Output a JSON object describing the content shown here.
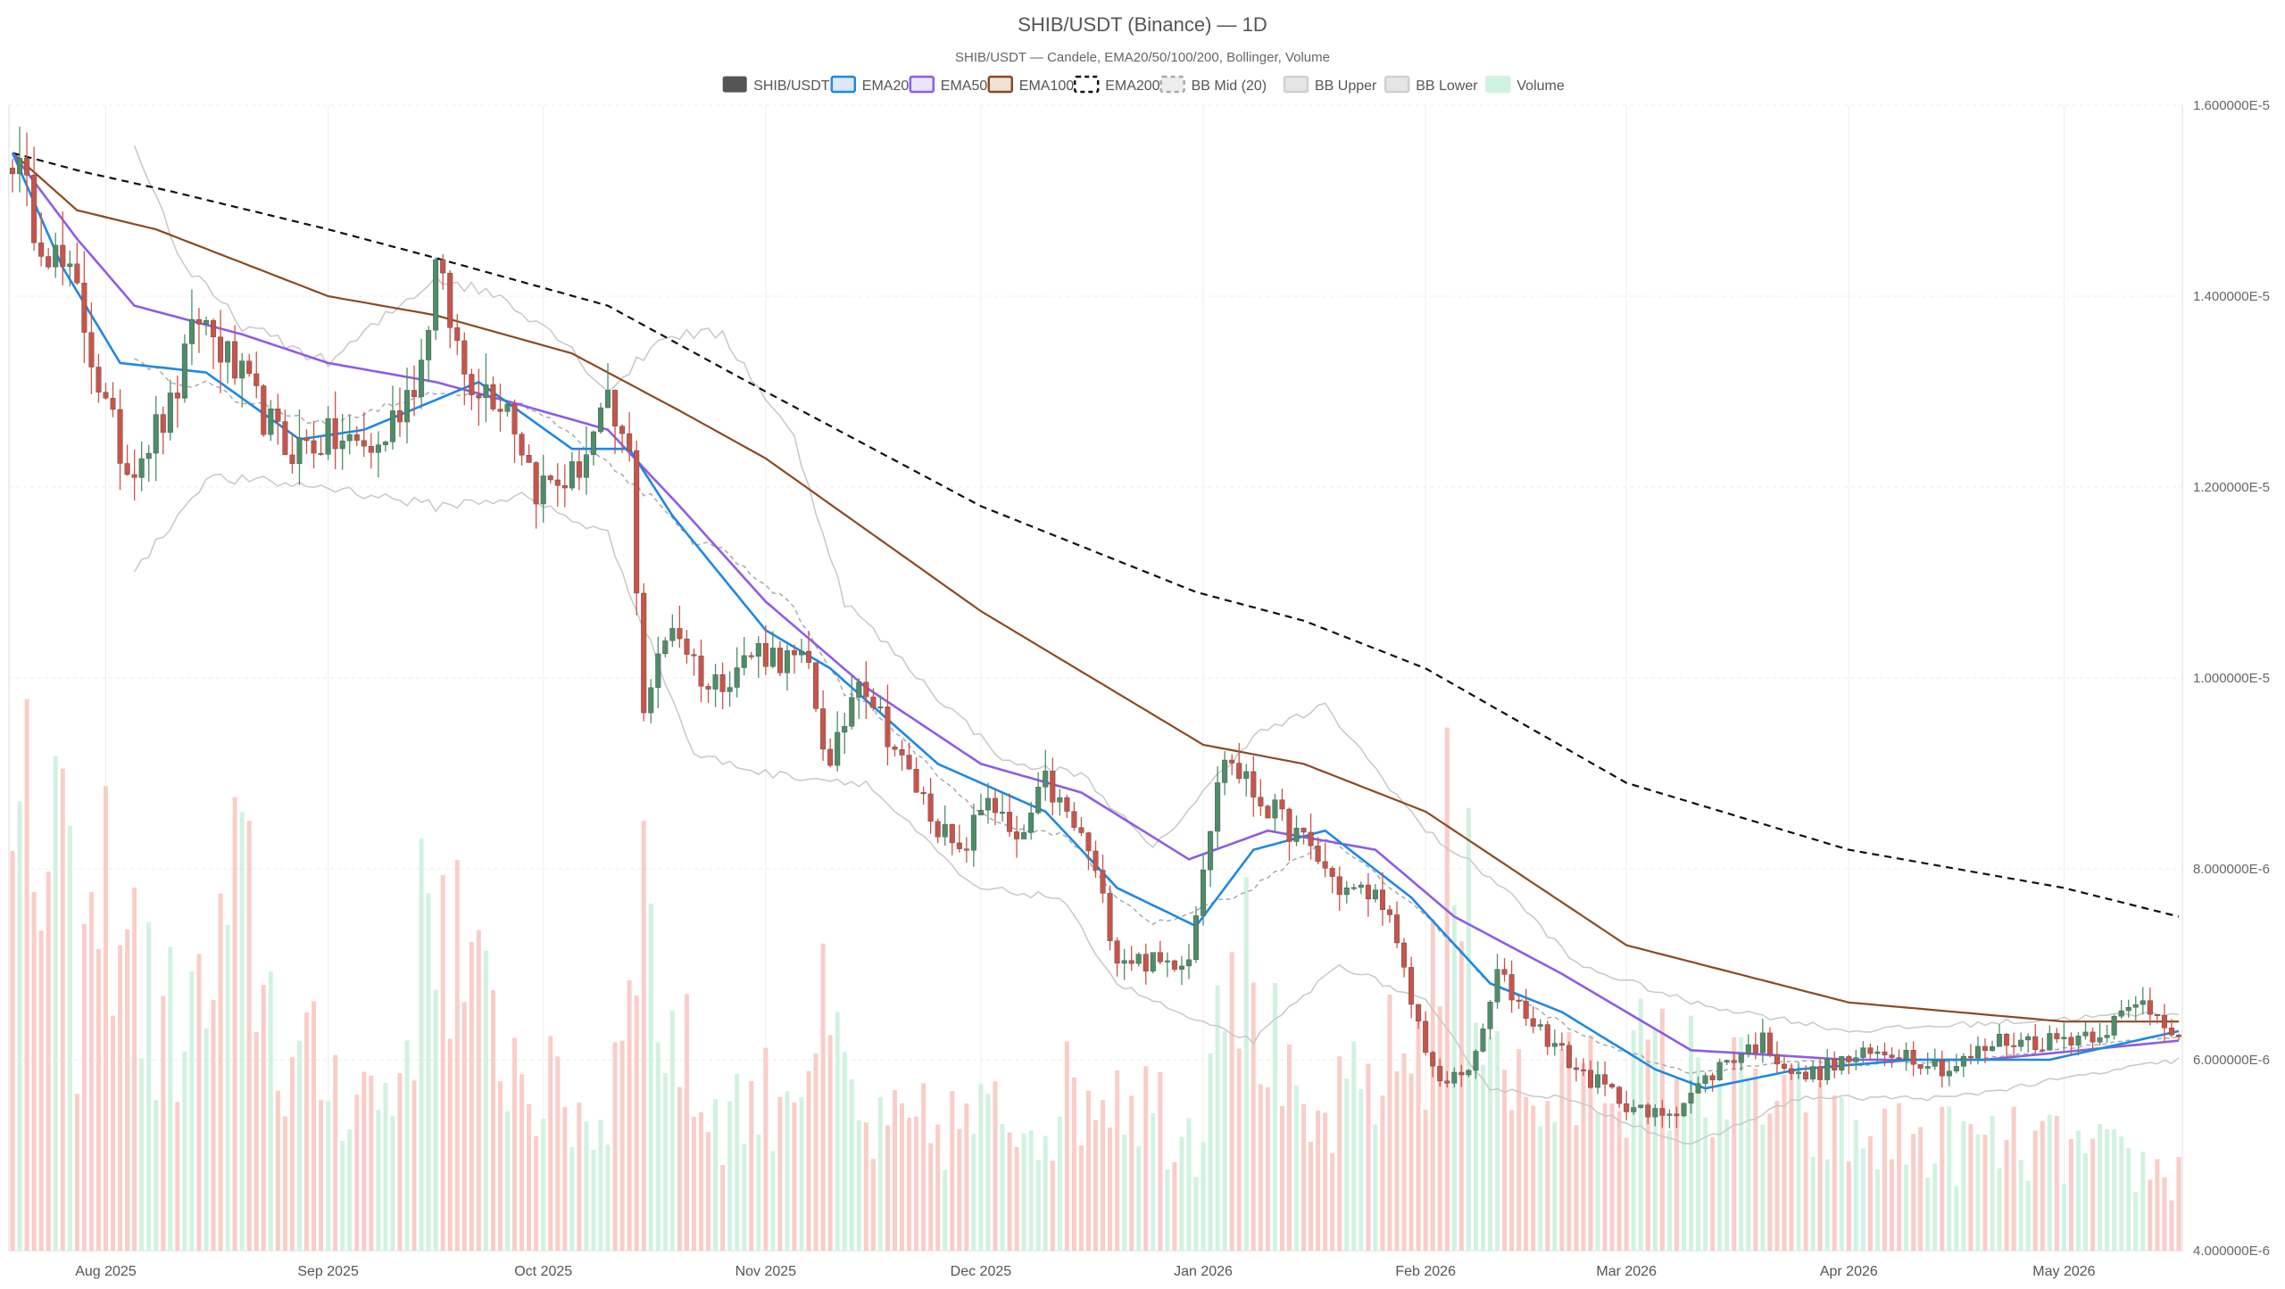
{
  "chart_data": {
    "type": "candlestick",
    "title": "SHIB/USDT (Binance) — 1D",
    "subtitle": "SHIB/USDT — Candele, EMA20/50/100/200, Bollinger, Volume",
    "ylim": [
      4e-06,
      1.6e-05
    ],
    "y_scale": "linear",
    "grid": true,
    "legend_position": "top-center",
    "y_ticks": [
      "1.600000E-5",
      "1.400000E-5",
      "1.200000E-5",
      "1.000000E-5",
      "8.000000E-6",
      "6.000000E-6",
      "4.000000E-6"
    ],
    "y_tick_values": [
      1.6e-05,
      1.4e-05,
      1.2e-05,
      1e-05,
      8e-06,
      6e-06,
      4e-06
    ],
    "x_start_date": "2025-07-19",
    "x_end_date": "2026-05-17",
    "x_ticks": [
      {
        "label": "Aug 2025",
        "date": "2025-08-01"
      },
      {
        "label": "Sep 2025",
        "date": "2025-09-01"
      },
      {
        "label": "Oct 2025",
        "date": "2025-10-01"
      },
      {
        "label": "Nov 2025",
        "date": "2025-11-01"
      },
      {
        "label": "Dec 2025",
        "date": "2025-12-01"
      },
      {
        "label": "Jan 2026",
        "date": "2026-01-01"
      },
      {
        "label": "Feb 2026",
        "date": "2026-02-01"
      },
      {
        "label": "Mar 2026",
        "date": "2026-03-01"
      },
      {
        "label": "Apr 2026",
        "date": "2026-04-01"
      },
      {
        "label": "May 2026",
        "date": "2026-05-01"
      }
    ],
    "legend": [
      {
        "label": "SHIB/USDT",
        "swatch": "solid",
        "fill": "#555555",
        "stroke": "#555555"
      },
      {
        "label": "EMA20",
        "swatch": "box",
        "fill": "#dbe9f7",
        "stroke": "#1e88e5"
      },
      {
        "label": "EMA50",
        "swatch": "box",
        "fill": "#ece4f9",
        "stroke": "#8e5ce8"
      },
      {
        "label": "EMA100",
        "swatch": "box",
        "fill": "#efe1d6",
        "stroke": "#8b4a23"
      },
      {
        "label": "EMA200",
        "swatch": "dashed",
        "fill": "#ffffff",
        "stroke": "#111111"
      },
      {
        "label": "BB Mid (20)",
        "swatch": "dashed",
        "fill": "#eeeeee",
        "stroke": "#aaaaaa"
      },
      {
        "label": "BB Upper",
        "swatch": "box",
        "fill": "#e6e6e6",
        "stroke": "#d0d0d0"
      },
      {
        "label": "BB Lower",
        "swatch": "box",
        "fill": "#e6e6e6",
        "stroke": "#d0d0d0"
      },
      {
        "label": "Volume",
        "swatch": "box",
        "fill": "#d2f2e1",
        "stroke": "#d2f2e1"
      }
    ],
    "colors": {
      "up": "#4e8d69",
      "down": "#c8544a",
      "vol_up": "#d2f2e1",
      "vol_down": "#f9cdc8",
      "ema20": "#1e88e5",
      "ema50": "#8e5ce8",
      "ema100": "#8b4a23",
      "ema200": "#111111",
      "bb_mid": "#aaaaaa",
      "bb_band": "#c8c8c8",
      "grid": "#eeeeee"
    },
    "close_anchors": [
      {
        "date": "2025-07-19",
        "close": 1.55e-05
      },
      {
        "date": "2025-07-22",
        "close": 1.48e-05
      },
      {
        "date": "2025-07-28",
        "close": 1.4e-05
      },
      {
        "date": "2025-08-01",
        "close": 1.28e-05
      },
      {
        "date": "2025-08-04",
        "close": 1.22e-05
      },
      {
        "date": "2025-08-10",
        "close": 1.28e-05
      },
      {
        "date": "2025-08-14",
        "close": 1.38e-05
      },
      {
        "date": "2025-08-20",
        "close": 1.31e-05
      },
      {
        "date": "2025-08-26",
        "close": 1.24e-05
      },
      {
        "date": "2025-09-01",
        "close": 1.25e-05
      },
      {
        "date": "2025-09-08",
        "close": 1.24e-05
      },
      {
        "date": "2025-09-14",
        "close": 1.33e-05
      },
      {
        "date": "2025-09-16",
        "close": 1.43e-05
      },
      {
        "date": "2025-09-20",
        "close": 1.32e-05
      },
      {
        "date": "2025-09-26",
        "close": 1.29e-05
      },
      {
        "date": "2025-09-30",
        "close": 1.2e-05
      },
      {
        "date": "2025-10-05",
        "close": 1.21e-05
      },
      {
        "date": "2025-10-10",
        "close": 1.28e-05
      },
      {
        "date": "2025-10-13",
        "close": 1.23e-05
      },
      {
        "date": "2025-10-15",
        "close": 9.7e-06
      },
      {
        "date": "2025-10-19",
        "close": 1.06e-05
      },
      {
        "date": "2025-10-24",
        "close": 9.9e-06
      },
      {
        "date": "2025-10-31",
        "close": 1.03e-05
      },
      {
        "date": "2025-11-07",
        "close": 1.01e-05
      },
      {
        "date": "2025-11-10",
        "close": 9e-06
      },
      {
        "date": "2025-11-14",
        "close": 1.01e-05
      },
      {
        "date": "2025-11-20",
        "close": 9.1e-06
      },
      {
        "date": "2025-11-28",
        "close": 8.1e-06
      },
      {
        "date": "2025-12-02",
        "close": 8.8e-06
      },
      {
        "date": "2025-12-06",
        "close": 8.2e-06
      },
      {
        "date": "2025-12-10",
        "close": 8.9e-06
      },
      {
        "date": "2025-12-16",
        "close": 8.2e-06
      },
      {
        "date": "2025-12-20",
        "close": 7.1e-06
      },
      {
        "date": "2025-12-26",
        "close": 7e-06
      },
      {
        "date": "2025-12-30",
        "close": 7.1e-06
      },
      {
        "date": "2026-01-01",
        "close": 8.1e-06
      },
      {
        "date": "2026-01-04",
        "close": 9.2e-06
      },
      {
        "date": "2026-01-08",
        "close": 8.8e-06
      },
      {
        "date": "2026-01-12",
        "close": 8.5e-06
      },
      {
        "date": "2026-01-16",
        "close": 8.2e-06
      },
      {
        "date": "2026-01-20",
        "close": 7.8e-06
      },
      {
        "date": "2026-01-26",
        "close": 7.7e-06
      },
      {
        "date": "2026-01-30",
        "close": 6.6e-06
      },
      {
        "date": "2026-02-03",
        "close": 5.7e-06
      },
      {
        "date": "2026-02-08",
        "close": 6e-06
      },
      {
        "date": "2026-02-11",
        "close": 6.9e-06
      },
      {
        "date": "2026-02-16",
        "close": 6.4e-06
      },
      {
        "date": "2026-02-22",
        "close": 5.9e-06
      },
      {
        "date": "2026-03-04",
        "close": 5.4e-06
      },
      {
        "date": "2026-03-08",
        "close": 5.5e-06
      },
      {
        "date": "2026-03-15",
        "close": 6e-06
      },
      {
        "date": "2026-03-20",
        "close": 6.2e-06
      },
      {
        "date": "2026-03-25",
        "close": 5.8e-06
      },
      {
        "date": "2026-04-01",
        "close": 6e-06
      },
      {
        "date": "2026-04-08",
        "close": 6.1e-06
      },
      {
        "date": "2026-04-15",
        "close": 5.9e-06
      },
      {
        "date": "2026-04-22",
        "close": 6.2e-06
      },
      {
        "date": "2026-04-29",
        "close": 6.2e-06
      },
      {
        "date": "2026-05-06",
        "close": 6.3e-06
      },
      {
        "date": "2026-05-12",
        "close": 6.6e-06
      },
      {
        "date": "2026-05-17",
        "close": 6.3e-06
      }
    ],
    "ema200_anchors": [
      {
        "date": "2025-07-19",
        "value": 1.55e-05
      },
      {
        "date": "2025-07-29",
        "value": 1.53e-05
      },
      {
        "date": "2025-08-10",
        "value": 1.51e-05
      },
      {
        "date": "2025-09-01",
        "value": 1.47e-05
      },
      {
        "date": "2025-09-16",
        "value": 1.44e-05
      },
      {
        "date": "2025-10-10",
        "value": 1.39e-05
      },
      {
        "date": "2025-11-01",
        "value": 1.3e-05
      },
      {
        "date": "2025-12-01",
        "value": 1.18e-05
      },
      {
        "date": "2025-12-31",
        "value": 1.09e-05
      },
      {
        "date": "2026-01-15",
        "value": 1.06e-05
      },
      {
        "date": "2026-02-01",
        "value": 1.01e-05
      },
      {
        "date": "2026-03-01",
        "value": 8.9e-06
      },
      {
        "date": "2026-04-01",
        "value": 8.2e-06
      },
      {
        "date": "2026-05-01",
        "value": 7.8e-06
      },
      {
        "date": "2026-05-17",
        "value": 7.5e-06
      }
    ],
    "ema100_anchors": [
      {
        "date": "2025-07-19",
        "value": 1.55e-05
      },
      {
        "date": "2025-07-28",
        "value": 1.49e-05
      },
      {
        "date": "2025-08-08",
        "value": 1.47e-05
      },
      {
        "date": "2025-09-01",
        "value": 1.4e-05
      },
      {
        "date": "2025-09-16",
        "value": 1.38e-05
      },
      {
        "date": "2025-10-05",
        "value": 1.34e-05
      },
      {
        "date": "2025-10-20",
        "value": 1.28e-05
      },
      {
        "date": "2025-11-01",
        "value": 1.23e-05
      },
      {
        "date": "2025-12-01",
        "value": 1.07e-05
      },
      {
        "date": "2026-01-01",
        "value": 9.3e-06
      },
      {
        "date": "2026-01-15",
        "value": 9.1e-06
      },
      {
        "date": "2026-02-01",
        "value": 8.6e-06
      },
      {
        "date": "2026-03-01",
        "value": 7.2e-06
      },
      {
        "date": "2026-04-01",
        "value": 6.6e-06
      },
      {
        "date": "2026-05-01",
        "value": 6.4e-06
      },
      {
        "date": "2026-05-17",
        "value": 6.4e-06
      }
    ],
    "ema50_anchors": [
      {
        "date": "2025-07-19",
        "value": 1.55e-05
      },
      {
        "date": "2025-07-28",
        "value": 1.46e-05
      },
      {
        "date": "2025-08-05",
        "value": 1.39e-05
      },
      {
        "date": "2025-08-20",
        "value": 1.36e-05
      },
      {
        "date": "2025-09-01",
        "value": 1.33e-05
      },
      {
        "date": "2025-09-16",
        "value": 1.31e-05
      },
      {
        "date": "2025-09-26",
        "value": 1.29e-05
      },
      {
        "date": "2025-10-10",
        "value": 1.26e-05
      },
      {
        "date": "2025-10-20",
        "value": 1.18e-05
      },
      {
        "date": "2025-11-01",
        "value": 1.08e-05
      },
      {
        "date": "2025-11-15",
        "value": 9.9e-06
      },
      {
        "date": "2025-12-01",
        "value": 9.1e-06
      },
      {
        "date": "2025-12-15",
        "value": 8.8e-06
      },
      {
        "date": "2025-12-30",
        "value": 8.1e-06
      },
      {
        "date": "2026-01-10",
        "value": 8.4e-06
      },
      {
        "date": "2026-01-25",
        "value": 8.2e-06
      },
      {
        "date": "2026-02-05",
        "value": 7.5e-06
      },
      {
        "date": "2026-02-20",
        "value": 6.9e-06
      },
      {
        "date": "2026-03-10",
        "value": 6.1e-06
      },
      {
        "date": "2026-04-01",
        "value": 6e-06
      },
      {
        "date": "2026-04-20",
        "value": 6e-06
      },
      {
        "date": "2026-05-17",
        "value": 6.2e-06
      }
    ],
    "ema20_anchors": [
      {
        "date": "2025-07-19",
        "value": 1.55e-05
      },
      {
        "date": "2025-07-26",
        "value": 1.43e-05
      },
      {
        "date": "2025-08-03",
        "value": 1.33e-05
      },
      {
        "date": "2025-08-15",
        "value": 1.32e-05
      },
      {
        "date": "2025-08-28",
        "value": 1.25e-05
      },
      {
        "date": "2025-09-06",
        "value": 1.26e-05
      },
      {
        "date": "2025-09-22",
        "value": 1.31e-05
      },
      {
        "date": "2025-10-05",
        "value": 1.24e-05
      },
      {
        "date": "2025-10-13",
        "value": 1.24e-05
      },
      {
        "date": "2025-10-19",
        "value": 1.17e-05
      },
      {
        "date": "2025-11-01",
        "value": 1.05e-05
      },
      {
        "date": "2025-11-10",
        "value": 1.01e-05
      },
      {
        "date": "2025-11-25",
        "value": 9.1e-06
      },
      {
        "date": "2025-12-10",
        "value": 8.6e-06
      },
      {
        "date": "2025-12-20",
        "value": 7.8e-06
      },
      {
        "date": "2025-12-31",
        "value": 7.4e-06
      },
      {
        "date": "2026-01-08",
        "value": 8.2e-06
      },
      {
        "date": "2026-01-18",
        "value": 8.4e-06
      },
      {
        "date": "2026-01-30",
        "value": 7.7e-06
      },
      {
        "date": "2026-02-10",
        "value": 6.8e-06
      },
      {
        "date": "2026-02-20",
        "value": 6.5e-06
      },
      {
        "date": "2026-03-05",
        "value": 5.9e-06
      },
      {
        "date": "2026-03-12",
        "value": 5.7e-06
      },
      {
        "date": "2026-03-25",
        "value": 5.9e-06
      },
      {
        "date": "2026-04-10",
        "value": 6e-06
      },
      {
        "date": "2026-04-29",
        "value": 6e-06
      },
      {
        "date": "2026-05-17",
        "value": 6.3e-06
      }
    ],
    "bb_upper_anchors": [
      {
        "date": "2025-08-05",
        "value": 1.56e-05
      },
      {
        "date": "2025-08-12",
        "value": 1.43e-05
      },
      {
        "date": "2025-08-20",
        "value": 1.37e-05
      },
      {
        "date": "2025-09-01",
        "value": 1.33e-05
      },
      {
        "date": "2025-09-16",
        "value": 1.42e-05
      },
      {
        "date": "2025-09-25",
        "value": 1.4e-05
      },
      {
        "date": "2025-10-03",
        "value": 1.36e-05
      },
      {
        "date": "2025-10-10",
        "value": 1.3e-05
      },
      {
        "date": "2025-10-18",
        "value": 1.36e-05
      },
      {
        "date": "2025-10-26",
        "value": 1.36e-05
      },
      {
        "date": "2025-11-05",
        "value": 1.25e-05
      },
      {
        "date": "2025-11-12",
        "value": 1.08e-05
      },
      {
        "date": "2025-11-25",
        "value": 9.8e-06
      },
      {
        "date": "2025-12-05",
        "value": 9.1e-06
      },
      {
        "date": "2025-12-15",
        "value": 9e-06
      },
      {
        "date": "2025-12-25",
        "value": 8.2e-06
      },
      {
        "date": "2026-01-08",
        "value": 9.4e-06
      },
      {
        "date": "2026-01-18",
        "value": 9.7e-06
      },
      {
        "date": "2026-02-01",
        "value": 8.4e-06
      },
      {
        "date": "2026-02-12",
        "value": 7.8e-06
      },
      {
        "date": "2026-02-22",
        "value": 7e-06
      },
      {
        "date": "2026-03-10",
        "value": 6.6e-06
      },
      {
        "date": "2026-04-01",
        "value": 6.3e-06
      },
      {
        "date": "2026-05-17",
        "value": 6.5e-06
      }
    ],
    "bb_lower_anchors": [
      {
        "date": "2025-08-05",
        "value": 1.11e-05
      },
      {
        "date": "2025-08-15",
        "value": 1.21e-05
      },
      {
        "date": "2025-09-01",
        "value": 1.2e-05
      },
      {
        "date": "2025-09-16",
        "value": 1.18e-05
      },
      {
        "date": "2025-09-28",
        "value": 1.19e-05
      },
      {
        "date": "2025-10-10",
        "value": 1.15e-05
      },
      {
        "date": "2025-10-22",
        "value": 9.2e-06
      },
      {
        "date": "2025-11-01",
        "value": 9e-06
      },
      {
        "date": "2025-11-15",
        "value": 8.9e-06
      },
      {
        "date": "2025-11-30",
        "value": 7.8e-06
      },
      {
        "date": "2025-12-12",
        "value": 7.7e-06
      },
      {
        "date": "2025-12-20",
        "value": 6.8e-06
      },
      {
        "date": "2025-12-31",
        "value": 6.4e-06
      },
      {
        "date": "2026-01-08",
        "value": 6.2e-06
      },
      {
        "date": "2026-01-20",
        "value": 7e-06
      },
      {
        "date": "2026-02-01",
        "value": 6.6e-06
      },
      {
        "date": "2026-02-10",
        "value": 5.7e-06
      },
      {
        "date": "2026-02-20",
        "value": 5.6e-06
      },
      {
        "date": "2026-03-10",
        "value": 5.1e-06
      },
      {
        "date": "2026-03-25",
        "value": 5.6e-06
      },
      {
        "date": "2026-04-15",
        "value": 5.6e-06
      },
      {
        "date": "2026-05-17",
        "value": 6e-06
      }
    ],
    "volume_ylim": [
      0,
      100
    ],
    "volume_anchors": [
      {
        "date": "2025-07-19",
        "value": 55
      },
      {
        "date": "2025-07-21",
        "value": 63
      },
      {
        "date": "2025-07-23",
        "value": 60
      },
      {
        "date": "2025-07-25",
        "value": 65
      },
      {
        "date": "2025-07-28",
        "value": 40
      },
      {
        "date": "2025-08-02",
        "value": 60
      },
      {
        "date": "2025-08-08",
        "value": 35
      },
      {
        "date": "2025-08-15",
        "value": 38
      },
      {
        "date": "2025-08-20",
        "value": 57
      },
      {
        "date": "2025-08-26",
        "value": 30
      },
      {
        "date": "2025-09-01",
        "value": 28
      },
      {
        "date": "2025-09-10",
        "value": 24
      },
      {
        "date": "2025-09-16",
        "value": 60
      },
      {
        "date": "2025-09-22",
        "value": 38
      },
      {
        "date": "2025-10-01",
        "value": 25
      },
      {
        "date": "2025-10-10",
        "value": 20
      },
      {
        "date": "2025-10-14",
        "value": 65
      },
      {
        "date": "2025-10-17",
        "value": 40
      },
      {
        "date": "2025-10-24",
        "value": 22
      },
      {
        "date": "2025-11-01",
        "value": 24
      },
      {
        "date": "2025-11-09",
        "value": 35
      },
      {
        "date": "2025-11-15",
        "value": 18
      },
      {
        "date": "2025-11-28",
        "value": 20
      },
      {
        "date": "2025-12-09",
        "value": 22
      },
      {
        "date": "2025-12-20",
        "value": 28
      },
      {
        "date": "2025-12-31",
        "value": 18
      },
      {
        "date": "2026-01-04",
        "value": 55
      },
      {
        "date": "2026-01-15",
        "value": 17
      },
      {
        "date": "2026-02-01",
        "value": 35
      },
      {
        "date": "2026-02-04",
        "value": 62
      },
      {
        "date": "2026-02-15",
        "value": 22
      },
      {
        "date": "2026-03-01",
        "value": 30
      },
      {
        "date": "2026-03-10",
        "value": 28
      },
      {
        "date": "2026-03-20",
        "value": 24
      },
      {
        "date": "2026-04-01",
        "value": 18
      },
      {
        "date": "2026-04-15",
        "value": 17
      },
      {
        "date": "2026-05-01",
        "value": 16
      },
      {
        "date": "2026-05-17",
        "value": 12
      }
    ]
  }
}
